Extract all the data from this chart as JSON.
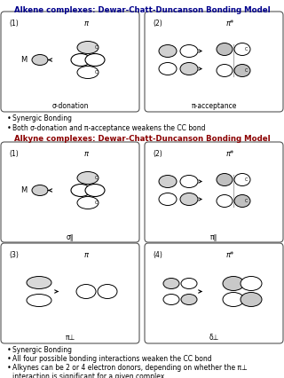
{
  "title_alkene": "Alkene complexes: Dewar-Chatt-Duncanson Bonding Model",
  "title_alkyne": "Alkyne complexes: Dewar-Chatt-Duncanson Bonding Model",
  "title_color_alkene": "#00008B",
  "title_color_alkyne": "#8B0000",
  "bg_color": "#FFFFFF",
  "bullets_alkene": [
    "Synergic Bonding",
    "Both σ-donation and π-acceptance weakens the CC bond"
  ],
  "bullets_alkyne": [
    "Synergic Bonding",
    "All four possible bonding interactions weaken the CC bond",
    "Alkynes can be 2 or 4 electron donors, depending on whether the π⊥ interaction is significant for a given complex"
  ],
  "label_1_alkene": "σ-donation",
  "label_2_alkene": "π-acceptance",
  "label_sigma_alkyne": "σ∥",
  "label_pi_alkyne": "π∥",
  "label_pi_perp": "π⊥",
  "label_delta_perp": "δ⊥",
  "pi_italic": "π",
  "pi_star_italic": "π*"
}
